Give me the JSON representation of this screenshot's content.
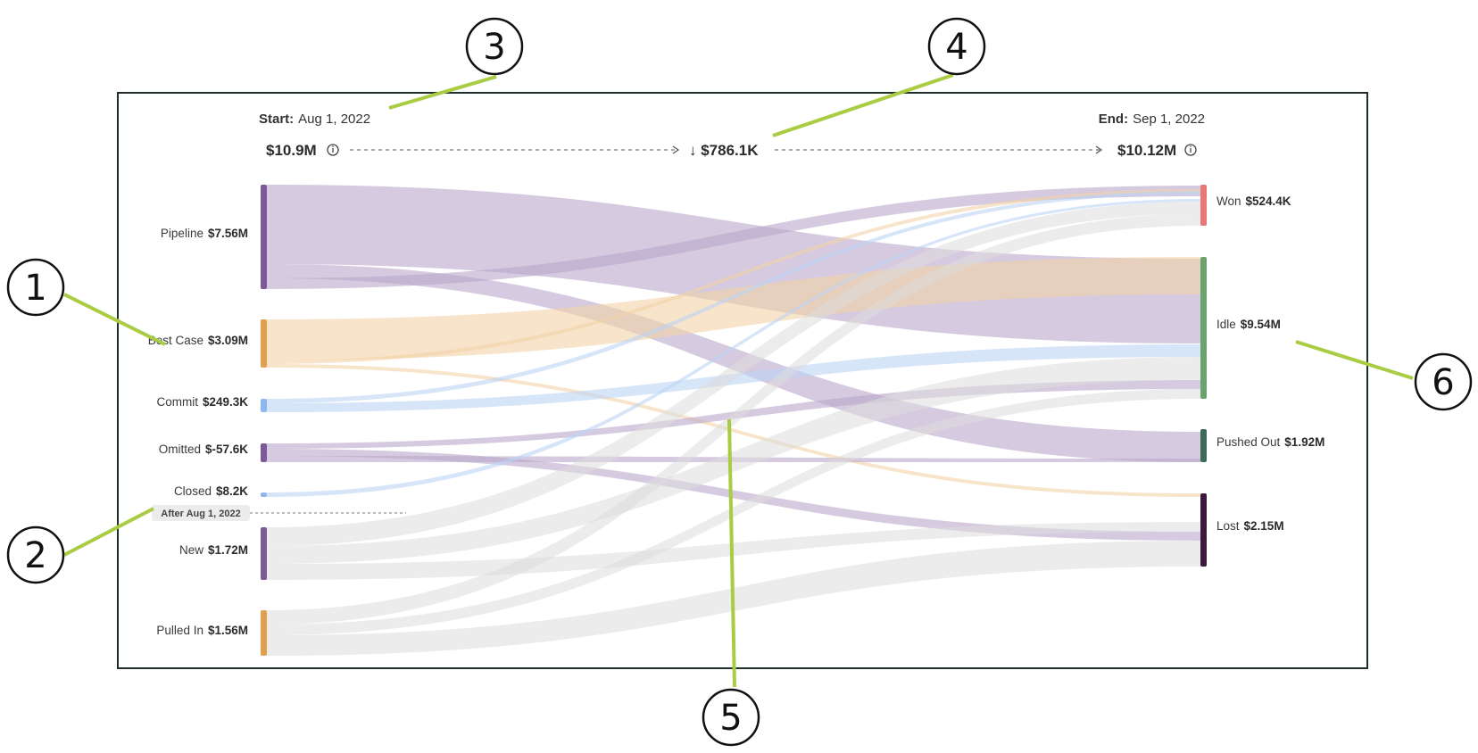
{
  "header": {
    "start_label": "Start:",
    "start_date": "Aug 1, 2022",
    "end_label": "End:",
    "end_date": "Sep 1, 2022",
    "start_total": "$10.9M",
    "change": "↓ $786.1K",
    "end_total": "$10.12M",
    "info_icon": "info-circle-icon"
  },
  "divider_label": "After Aug 1, 2022",
  "sources": [
    {
      "id": "pipeline",
      "name": "Pipeline",
      "value": "$7.56M",
      "color": "#7b5a95"
    },
    {
      "id": "bestcase",
      "name": "Best Case",
      "value": "$3.09M",
      "color": "#e0a050"
    },
    {
      "id": "commit",
      "name": "Commit",
      "value": "$249.3K",
      "color": "#8fb6ee"
    },
    {
      "id": "omitted",
      "name": "Omitted",
      "value": "$-57.6K",
      "color": "#7b5a95"
    },
    {
      "id": "closed",
      "name": "Closed",
      "value": "$8.2K",
      "color": "#8fb6ee"
    },
    {
      "id": "new",
      "name": "New",
      "value": "$1.72M",
      "color": "#7b5a95"
    },
    {
      "id": "pulledin",
      "name": "Pulled In",
      "value": "$1.56M",
      "color": "#e0a050"
    }
  ],
  "targets": [
    {
      "id": "won",
      "name": "Won",
      "value": "$524.4K",
      "color": "#e87878"
    },
    {
      "id": "idle",
      "name": "Idle",
      "value": "$9.54M",
      "color": "#6aa36e"
    },
    {
      "id": "pushed",
      "name": "Pushed Out",
      "value": "$1.92M",
      "color": "#3e6b55"
    },
    {
      "id": "lost",
      "name": "Lost",
      "value": "$2.15M",
      "color": "#3d1a3c"
    }
  ],
  "callouts": [
    "1",
    "2",
    "3",
    "4",
    "5",
    "6"
  ],
  "colors": {
    "purple_flow": "#b9a6c9",
    "orange_flow": "#f3d2a6",
    "blue_flow": "#bcd3f5",
    "grey_flow": "#dcdcdc",
    "frame": "#1f2e2a",
    "callout_line": "#a9cc43"
  }
}
